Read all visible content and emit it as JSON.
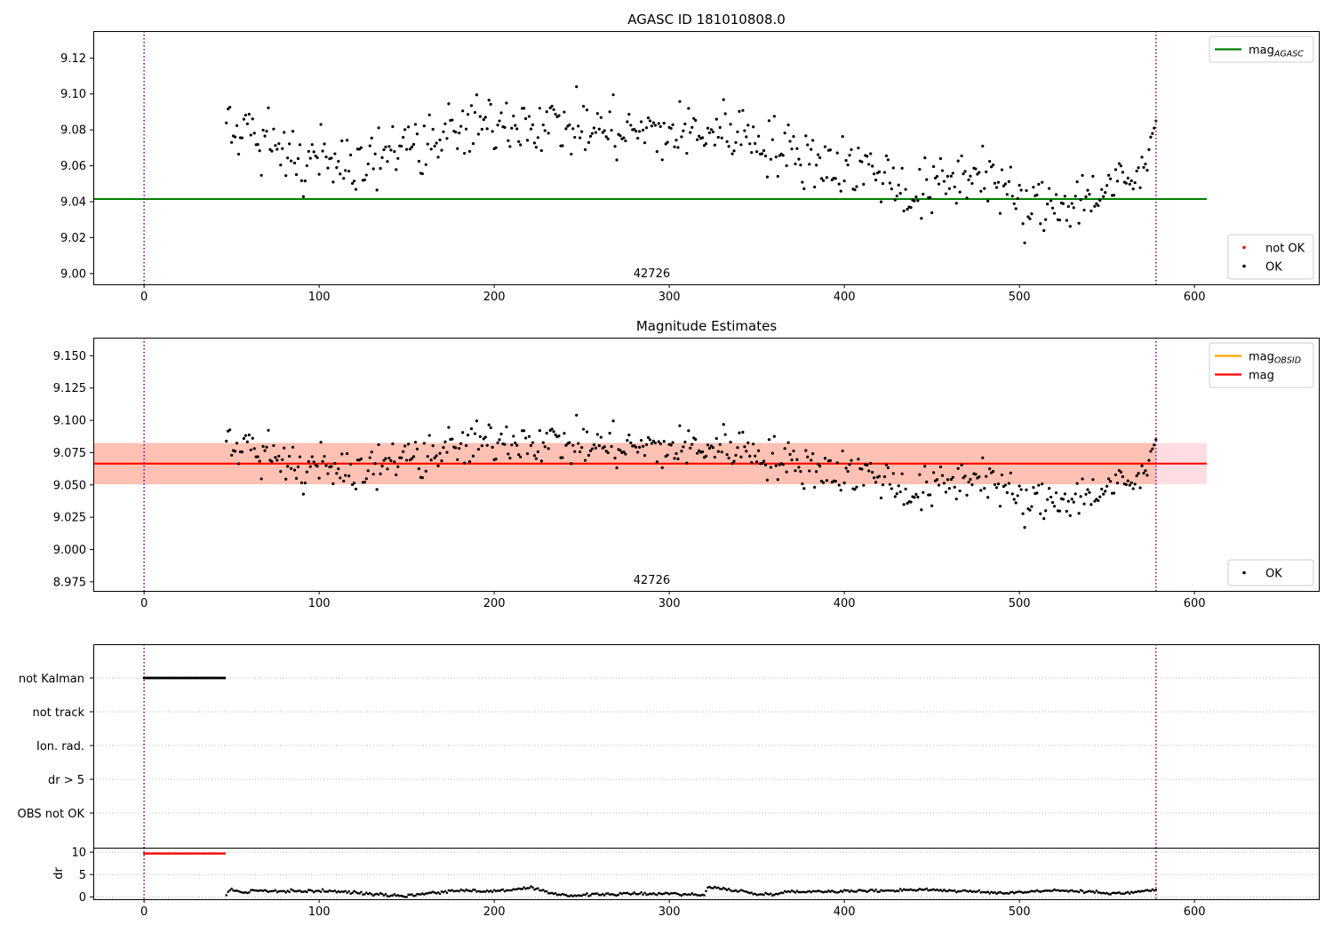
{
  "colors": {
    "ok_points": "#000000",
    "not_ok_points": "#ff0000",
    "mag_agasc_line": "#008000",
    "mag_obsid_line": "#ffa500",
    "mag_line": "#ff0000",
    "obs_vline": "#800080",
    "band_fill": "#ffc0cb",
    "band_fill_obsid": "#ffa07a"
  },
  "chart_data": [
    {
      "id": "top",
      "type": "scatter",
      "title": "AGASC ID 181010808.0",
      "xlim": [
        -29,
        671
      ],
      "ylim": [
        8.994,
        9.135
      ],
      "xticks": [
        0,
        100,
        200,
        300,
        400,
        500,
        600
      ],
      "yticks": [
        9.0,
        9.02,
        9.04,
        9.06,
        9.08,
        9.1,
        9.12
      ],
      "ytick_decimals": 2,
      "grid": false,
      "obsid_label": "42726",
      "obsid_label_x": 290,
      "vlines": [
        0,
        578
      ],
      "hlines": [
        {
          "name": "mag_agasc",
          "y": 9.0415,
          "x0": -29,
          "x1": 607,
          "color": "#008000"
        }
      ],
      "legends": [
        {
          "position": "top-right",
          "entries": [
            {
              "kind": "line",
              "label": "mag",
              "sub": "AGASC",
              "color": "#008000"
            }
          ]
        },
        {
          "position": "bottom-right",
          "entries": [
            {
              "kind": "marker",
              "label": "not OK",
              "color": "#ff0000"
            },
            {
              "kind": "marker",
              "label": "OK",
              "color": "#000000"
            }
          ]
        }
      ],
      "series": [
        {
          "name": "OK",
          "x_start": 47,
          "x_end": 578,
          "n": 532,
          "trend": [
            [
              47,
              9.082
            ],
            [
              100,
              9.058
            ],
            [
              150,
              9.071
            ],
            [
              210,
              9.086
            ],
            [
              260,
              9.08
            ],
            [
              300,
              9.078
            ],
            [
              340,
              9.08
            ],
            [
              370,
              9.066
            ],
            [
              420,
              9.057
            ],
            [
              440,
              9.043
            ],
            [
              480,
              9.059
            ],
            [
              502,
              9.035
            ],
            [
              540,
              9.043
            ],
            [
              578,
              9.057
            ]
          ],
          "noise": 0.0085,
          "ending": [
            [
              572,
              9.061
            ],
            [
              574,
              9.069
            ],
            [
              575,
              9.076
            ],
            [
              576,
              9.078
            ],
            [
              577,
              9.081
            ],
            [
              578,
              9.085
            ]
          ]
        }
      ]
    },
    {
      "id": "middle",
      "type": "scatter",
      "title": "Magnitude Estimates",
      "xlim": [
        -29,
        671
      ],
      "ylim": [
        8.968,
        9.164
      ],
      "xticks": [
        0,
        100,
        200,
        300,
        400,
        500,
        600
      ],
      "yticks": [
        8.975,
        9.0,
        9.025,
        9.05,
        9.075,
        9.1,
        9.125,
        9.15
      ],
      "ytick_decimals": 3,
      "grid": false,
      "obsid_label": "42726",
      "obsid_label_x": 290,
      "vlines": [
        0,
        578
      ],
      "band": {
        "y0": 9.0505,
        "y1": 9.0825,
        "x0": -29,
        "x1": 607
      },
      "hlines": [
        {
          "name": "mag_obsid",
          "y": 9.0665,
          "x0": -29,
          "x1": 578,
          "color": "#ffa500"
        },
        {
          "name": "mag",
          "y": 9.0665,
          "x0": -29,
          "x1": 607,
          "color": "#ff0000"
        }
      ],
      "legends": [
        {
          "position": "top-right",
          "entries": [
            {
              "kind": "line",
              "label": "mag",
              "sub": "OBSID",
              "color": "#ffa500"
            },
            {
              "kind": "line",
              "label": "mag",
              "sub": "",
              "color": "#ff0000"
            }
          ]
        },
        {
          "position": "bottom-right",
          "entries": [
            {
              "kind": "marker",
              "label": "OK",
              "color": "#000000"
            }
          ]
        }
      ],
      "series": [
        {
          "name": "OK",
          "x_start": 47,
          "x_end": 578,
          "n": 532,
          "trend": [
            [
              47,
              9.082
            ],
            [
              100,
              9.058
            ],
            [
              150,
              9.071
            ],
            [
              210,
              9.086
            ],
            [
              260,
              9.08
            ],
            [
              300,
              9.078
            ],
            [
              340,
              9.08
            ],
            [
              370,
              9.066
            ],
            [
              420,
              9.057
            ],
            [
              440,
              9.043
            ],
            [
              480,
              9.059
            ],
            [
              502,
              9.035
            ],
            [
              540,
              9.043
            ],
            [
              578,
              9.057
            ]
          ],
          "noise": 0.0085,
          "ending": [
            [
              572,
              9.061
            ],
            [
              574,
              9.069
            ],
            [
              575,
              9.076
            ],
            [
              576,
              9.078
            ],
            [
              577,
              9.081
            ],
            [
              578,
              9.085
            ]
          ]
        }
      ]
    },
    {
      "id": "flags",
      "type": "scatter",
      "xlim": [
        -29,
        671
      ],
      "categories": [
        "not Kalman",
        "not track",
        "Ion. rad.",
        "dr > 5",
        "OBS not OK"
      ],
      "grid": true,
      "vlines": [
        0,
        578
      ],
      "series": [
        {
          "name": "not Kalman",
          "category": "not Kalman",
          "x_start": 0,
          "x_end": 46,
          "n": 47,
          "color": "#000000"
        }
      ]
    },
    {
      "id": "dr",
      "type": "scatter",
      "ylabel": "dr",
      "xlim": [
        -29,
        671
      ],
      "ylim": [
        -0.5,
        11
      ],
      "xticks": [
        0,
        100,
        200,
        300,
        400,
        500,
        600
      ],
      "yticks": [
        0,
        5,
        10
      ],
      "grid": true,
      "vlines": [
        0,
        578
      ],
      "series": [
        {
          "name": "dr clipped",
          "x_start": 0,
          "x_end": 46,
          "n": 47,
          "value": 9.7,
          "color": "#ff0000"
        },
        {
          "name": "dr",
          "x_start": 47,
          "x_end": 578,
          "n": 532,
          "trend": [
            [
              47,
              0.6
            ],
            [
              50,
              1.7
            ],
            [
              58,
              0.9
            ],
            [
              62,
              1.5
            ],
            [
              80,
              1.2
            ],
            [
              100,
              1.4
            ],
            [
              120,
              1.0
            ],
            [
              140,
              0.5
            ],
            [
              150,
              0.2
            ],
            [
              160,
              0.8
            ],
            [
              185,
              1.6
            ],
            [
              195,
              1.2
            ],
            [
              222,
              2.0
            ],
            [
              230,
              1.0
            ],
            [
              245,
              0.3
            ],
            [
              260,
              0.6
            ],
            [
              300,
              0.8
            ],
            [
              320,
              0.4
            ],
            [
              322,
              2.2
            ],
            [
              340,
              1.4
            ],
            [
              352,
              0.5
            ],
            [
              370,
              1.2
            ],
            [
              420,
              1.4
            ],
            [
              445,
              1.7
            ],
            [
              490,
              0.9
            ],
            [
              520,
              1.5
            ],
            [
              560,
              0.8
            ],
            [
              578,
              1.6
            ]
          ],
          "noise": 0.15,
          "color": "#000000"
        }
      ]
    }
  ]
}
